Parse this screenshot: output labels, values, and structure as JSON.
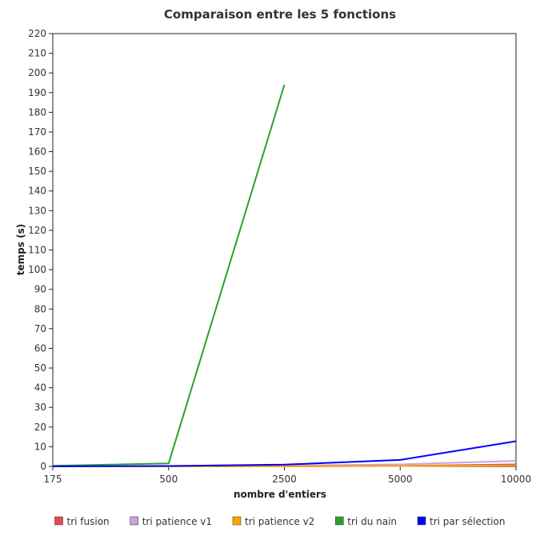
{
  "chart_data": {
    "type": "line",
    "title": "Comparaison entre les 5 fonctions",
    "xlabel": "nombre d'entiers",
    "ylabel": "temps (s)",
    "categories": [
      "175",
      "500",
      "2500",
      "5000",
      "10000"
    ],
    "ylim": [
      0,
      220
    ],
    "yticks": [
      0,
      10,
      20,
      30,
      40,
      50,
      60,
      70,
      80,
      90,
      100,
      110,
      120,
      130,
      140,
      150,
      160,
      170,
      180,
      190,
      200,
      210,
      220
    ],
    "grid": false,
    "legend_position": "bottom",
    "series": [
      {
        "name": "tri fusion",
        "color": "#e8474f",
        "values": [
          0.01,
          0.02,
          0.1,
          0.3,
          1.0
        ]
      },
      {
        "name": "tri patience v1",
        "color": "#c9a0e6",
        "values": [
          0.01,
          0.05,
          0.4,
          1.0,
          2.8
        ]
      },
      {
        "name": "tri patience v2",
        "color": "#ffa500",
        "values": [
          0.01,
          0.02,
          0.1,
          0.2,
          0.5
        ]
      },
      {
        "name": "tri du nain",
        "color": "#2ca02c",
        "values": [
          0.3,
          1.5,
          194,
          null,
          null
        ]
      },
      {
        "name": "tri par sélection",
        "color": "#0000ff",
        "values": [
          0.05,
          0.2,
          0.9,
          3.3,
          12.8
        ]
      }
    ]
  }
}
